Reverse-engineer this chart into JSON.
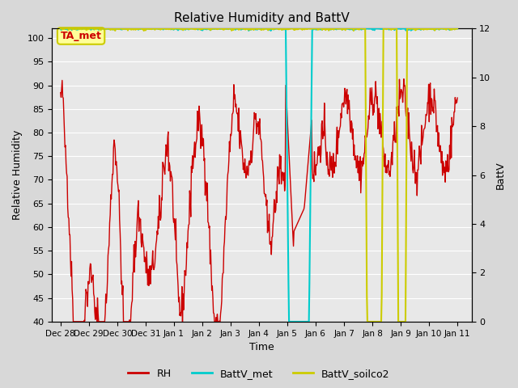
{
  "title": "Relative Humidity and BattV",
  "ylabel_left": "Relative Humidity",
  "ylabel_right": "BattV",
  "xlabel": "Time",
  "ylim_left": [
    40,
    102
  ],
  "ylim_right": [
    0,
    12
  ],
  "bg_color": "#d8d8d8",
  "plot_bg_color": "#e8e8e8",
  "annotation_label": "TA_met",
  "annotation_bg": "#ffff99",
  "annotation_border": "#cccc00",
  "rh_color": "#cc0000",
  "battv_met_color": "#00cccc",
  "battv_soilco2_color": "#cccc00",
  "legend_rh_color": "#cc0000",
  "legend_battv_met_color": "#00cccc",
  "legend_battv_soilco2_color": "#cccc00",
  "xtick_labels": [
    "Dec 28",
    "Dec 29",
    "Dec 30",
    "Dec 31",
    "Jan 1",
    "Jan 2",
    "Jan 3",
    "Jan 4",
    "Jan 5",
    "Jan 6",
    "Jan 7",
    "Jan 8",
    "Jan 9",
    "Jan 10",
    "Jan 11"
  ],
  "yticks_left": [
    40,
    45,
    50,
    55,
    60,
    65,
    70,
    75,
    80,
    85,
    90,
    95,
    100
  ],
  "yticks_right": [
    0,
    2,
    4,
    6,
    8,
    10,
    12
  ]
}
